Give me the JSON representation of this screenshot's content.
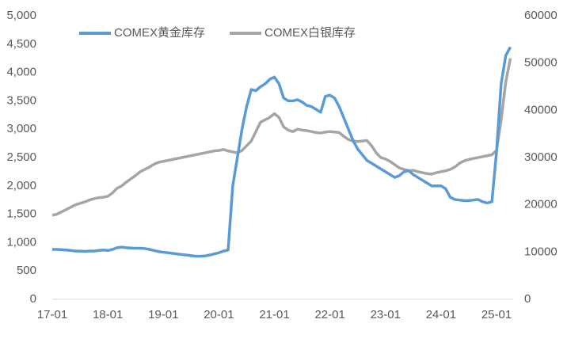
{
  "chart_data": {
    "type": "line",
    "categories": [
      "17-01",
      null,
      null,
      null,
      null,
      null,
      null,
      null,
      null,
      null,
      null,
      null,
      "18-01",
      null,
      null,
      null,
      null,
      null,
      null,
      null,
      null,
      null,
      null,
      null,
      "19-01",
      null,
      null,
      null,
      null,
      null,
      null,
      null,
      null,
      null,
      null,
      null,
      "20-01",
      null,
      null,
      null,
      null,
      null,
      null,
      null,
      null,
      null,
      null,
      null,
      "21-01",
      null,
      null,
      null,
      null,
      null,
      null,
      null,
      null,
      null,
      null,
      null,
      "22-01",
      null,
      null,
      null,
      null,
      null,
      null,
      null,
      null,
      null,
      null,
      null,
      "23-01",
      null,
      null,
      null,
      null,
      null,
      null,
      null,
      null,
      null,
      null,
      null,
      "24-01",
      null,
      null,
      null,
      null,
      null,
      null,
      null,
      null,
      null,
      null,
      null,
      "25-01",
      null,
      null,
      null
    ],
    "series": [
      {
        "name": "COMEX黄金库存",
        "color": "#5b9bd5",
        "axis": "y",
        "values": [
          880,
          880,
          875,
          870,
          860,
          850,
          850,
          845,
          850,
          850,
          860,
          870,
          860,
          880,
          910,
          920,
          910,
          905,
          900,
          900,
          895,
          880,
          860,
          840,
          830,
          820,
          810,
          800,
          790,
          780,
          770,
          760,
          760,
          765,
          780,
          800,
          820,
          850,
          870,
          2000,
          2500,
          3000,
          3400,
          3700,
          3680,
          3750,
          3800,
          3880,
          3920,
          3800,
          3550,
          3500,
          3500,
          3520,
          3480,
          3420,
          3400,
          3350,
          3300,
          3580,
          3600,
          3550,
          3400,
          3200,
          3000,
          2800,
          2650,
          2550,
          2450,
          2400,
          2350,
          2300,
          2250,
          2200,
          2150,
          2180,
          2250,
          2270,
          2200,
          2150,
          2100,
          2050,
          2000,
          2000,
          2000,
          1950,
          1800,
          1760,
          1750,
          1740,
          1740,
          1750,
          1760,
          1720,
          1700,
          1720,
          2600,
          3800,
          4300,
          4450
        ]
      },
      {
        "name": "COMEX白银库存",
        "color": "#a5a5a5",
        "axis": "y2",
        "values": [
          17800,
          18000,
          18500,
          19000,
          19500,
          20000,
          20300,
          20600,
          21000,
          21300,
          21500,
          21600,
          21800,
          22500,
          23500,
          24000,
          24800,
          25500,
          26200,
          27000,
          27500,
          28000,
          28600,
          29000,
          29200,
          29400,
          29600,
          29800,
          30000,
          30200,
          30400,
          30600,
          30800,
          31000,
          31200,
          31400,
          31500,
          31700,
          31400,
          31200,
          31000,
          31500,
          32500,
          33500,
          35500,
          37500,
          38000,
          38500,
          39300,
          38500,
          36500,
          35800,
          35500,
          36000,
          35800,
          35700,
          35500,
          35300,
          35200,
          35400,
          35500,
          35400,
          35300,
          34500,
          33800,
          33500,
          33400,
          33500,
          33600,
          32500,
          31000,
          30000,
          29700,
          29200,
          28500,
          27800,
          27500,
          27200,
          27300,
          27000,
          26800,
          26600,
          26500,
          26800,
          27000,
          27200,
          27500,
          28000,
          28800,
          29300,
          29600,
          29800,
          30000,
          30200,
          30400,
          30600,
          31500,
          38000,
          46000,
          51000
        ]
      }
    ],
    "ylim": [
      0,
      5000
    ],
    "yticks": [
      0,
      500,
      {
        "value": 1000,
        "label": "1,000"
      },
      {
        "value": 1500,
        "label": "1,500"
      },
      {
        "value": 2000,
        "label": "2,000"
      },
      {
        "value": 2500,
        "label": "2,500"
      },
      {
        "value": 3000,
        "label": "3,000"
      },
      {
        "value": 3500,
        "label": "3,500"
      },
      {
        "value": 4000,
        "label": "4,000"
      },
      {
        "value": 4500,
        "label": "4,500"
      },
      {
        "value": 5000,
        "label": "5,000"
      }
    ],
    "y2lim": [
      0,
      60000
    ],
    "y2ticks": [
      0,
      10000,
      20000,
      30000,
      40000,
      50000,
      60000
    ],
    "grid": false,
    "legend": "top-left"
  }
}
